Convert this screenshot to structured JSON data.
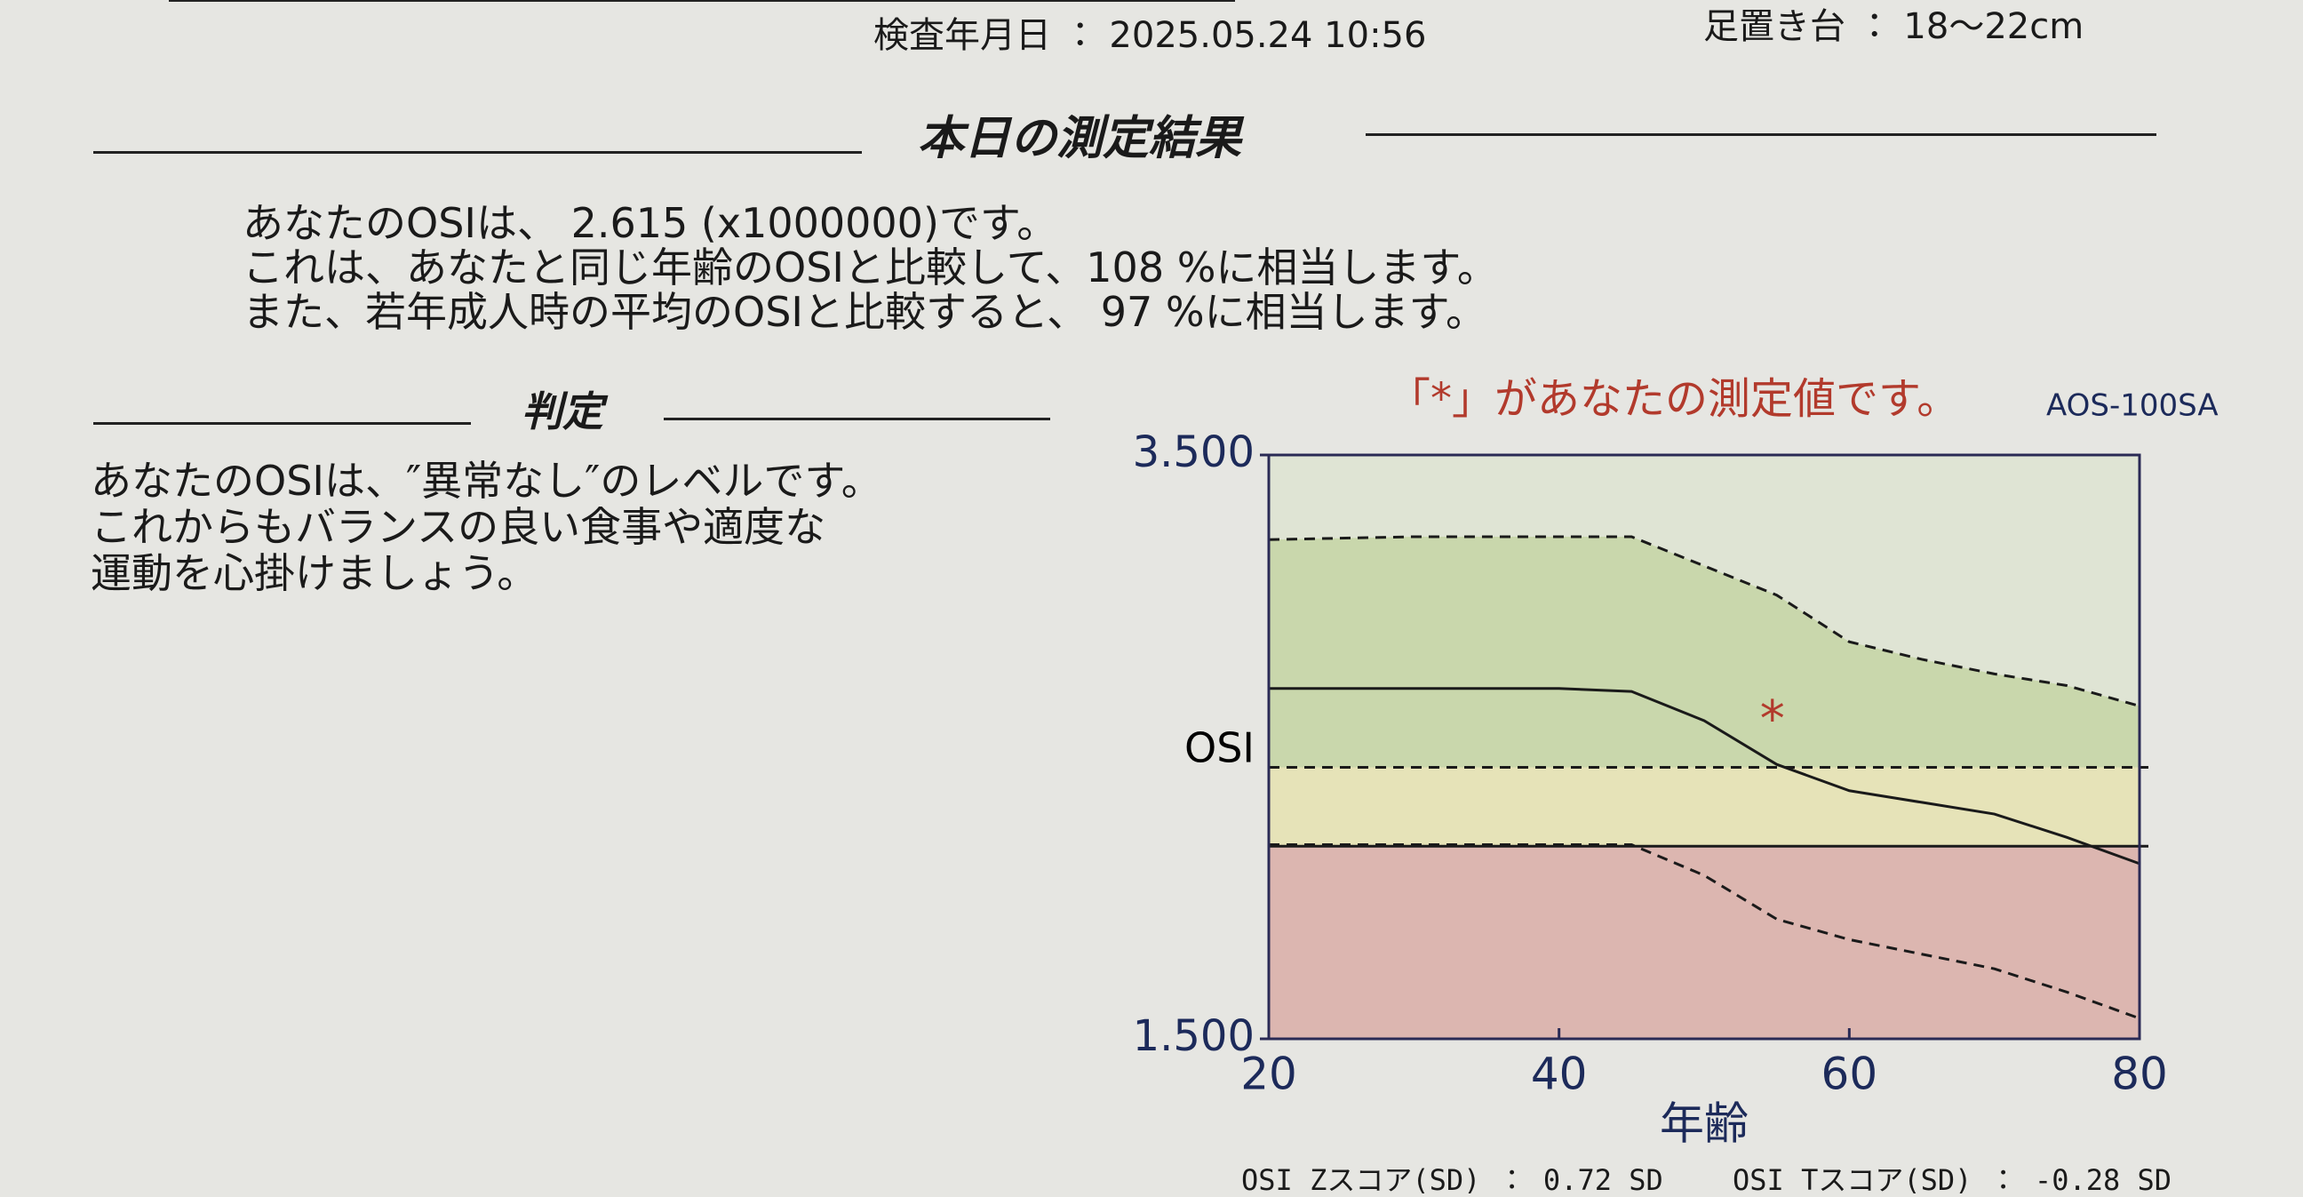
{
  "header": {
    "exam_date": "検査年月日 ： 2025.05.24 10:56",
    "footrest": "足置き台 ： 18～22cm"
  },
  "result": {
    "title": "本日の測定結果",
    "lines": [
      "あなたのOSIは、 2.615 (x1000000)です。",
      "これは、あなたと同じ年齢のOSIと比較して、108 %に相当します。",
      "また、若年成人時の平均のOSIと比較すると、 97 %に相当します。"
    ]
  },
  "judgment": {
    "title": "判定",
    "lines": [
      "あなたのOSIは、″異常なし″のレベルです。",
      "これからもバランスの良い食事や適度な",
      "運動を心掛けましょう。"
    ]
  },
  "scores": {
    "z": "OSI Zスコア(SD) ： 0.72  SD",
    "t": "OSI Tスコア(SD) ： -0.28 SD"
  },
  "chart_data": {
    "type": "line",
    "title": "「*」があなたの測定値です。",
    "model": "AOS-100SA",
    "y_label": "OSI",
    "x_label": "年齢",
    "x": [
      20,
      30,
      40,
      45,
      50,
      55,
      60,
      65,
      70,
      75,
      80
    ],
    "series": [
      {
        "color": "#1a1a1a",
        "dash": false,
        "values": [
          2.7,
          2.7,
          2.7,
          2.69,
          2.59,
          2.44,
          2.35,
          2.31,
          2.27,
          2.19,
          2.1
        ]
      },
      {
        "color": "#1a1a1a",
        "dash": true,
        "values": [
          3.21,
          3.22,
          3.22,
          3.22,
          3.12,
          3.02,
          2.86,
          2.8,
          2.75,
          2.71,
          2.64
        ]
      },
      {
        "color": "#1a1a1a",
        "dash": true,
        "values": [
          2.165,
          2.165,
          2.165,
          2.165,
          2.06,
          1.91,
          1.84,
          1.79,
          1.74,
          1.66,
          1.57
        ]
      }
    ],
    "zones": {
      "thresholds": [
        2.16,
        2.43
      ],
      "colors": [
        "#dcb6b0",
        "#e6e3b8",
        "#c9d7ac"
      ],
      "dash": [
        false,
        true
      ]
    },
    "point": {
      "x": 54.7,
      "y": 2.615,
      "marker": "*",
      "color": "#b23a2c"
    },
    "xlim": [
      20,
      80
    ],
    "xticks": [
      20,
      40,
      60,
      80
    ],
    "ylim": [
      1.5,
      3.5
    ],
    "yticks": [
      {
        "value": 1.5,
        "label": "1.500"
      },
      {
        "value": 3.5,
        "label": "3.500"
      }
    ]
  }
}
